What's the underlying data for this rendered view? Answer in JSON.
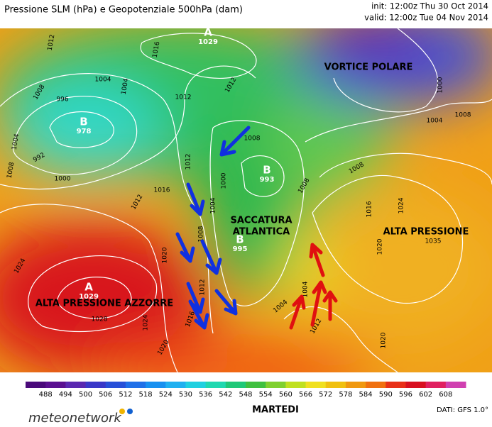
{
  "header": {
    "title": "Pressione SLM (hPa) e Geopotenziale 500hPa (dam)",
    "init": "init: 12:00z Thu 30 Oct 2014",
    "valid": "valid: 12:00z Tue 04 Nov 2014"
  },
  "map": {
    "regions": [
      "VORTICE POLARE",
      "SACCATURA",
      "ATLANTICA",
      "ALTA PRESSIONE",
      "ALTA PRESSIONE AZZORRE"
    ],
    "centers": [
      {
        "letter": "A",
        "value": "1029"
      },
      {
        "letter": "B",
        "value": "978"
      },
      {
        "letter": "B",
        "value": "993"
      },
      {
        "letter": "B",
        "value": "995"
      },
      {
        "letter": "A",
        "value": "1029"
      }
    ],
    "isobar_labels": [
      "1012",
      "1016",
      "1008",
      "996",
      "1004",
      "1004",
      "1012",
      "1012",
      "1008",
      "1004",
      "992",
      "1008",
      "1000",
      "1012",
      "1016",
      "1012",
      "1000",
      "1004",
      "1008",
      "1020",
      "1024",
      "1012",
      "1016",
      "1020",
      "1024",
      "1028",
      "1004",
      "1012",
      "1004",
      "1008",
      "1008",
      "1016",
      "1024",
      "1020",
      "1020",
      "1000",
      "1004",
      "1008",
      "1035"
    ]
  },
  "colorbar": {
    "ticks": [
      488,
      494,
      500,
      506,
      512,
      518,
      524,
      530,
      536,
      542,
      548,
      554,
      560,
      566,
      572,
      578,
      584,
      590,
      596,
      602,
      608
    ]
  },
  "footer": {
    "brand": "meteonetwork",
    "day": "MARTEDI",
    "source": "DATI: GFS 1.0°"
  }
}
